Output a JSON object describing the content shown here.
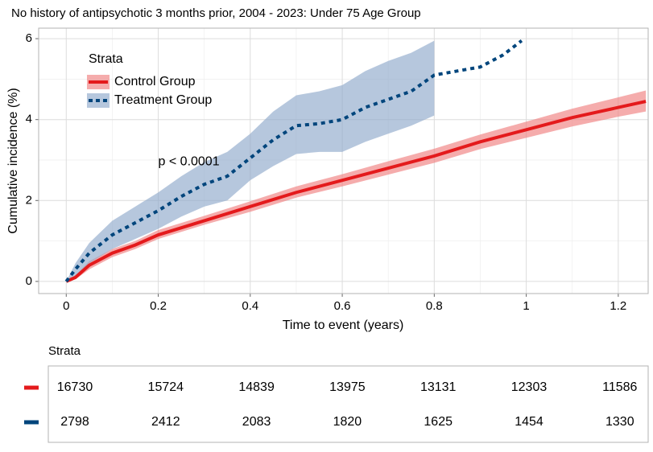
{
  "chart_data": {
    "type": "line",
    "title": "No history of antipsychotic 3 months prior, 2004 - 2023: Under 75 Age Group",
    "x_label": "Time to event (years)",
    "y_label": "Cumulative incidence (%)",
    "annotation": "p < 0.0001",
    "legend_title": "Strata",
    "xlim": [
      -0.06,
      1.265
    ],
    "ylim": [
      -0.3,
      6.26
    ],
    "xticks": [
      0,
      0.2,
      0.4,
      0.6,
      0.8,
      1,
      1.2
    ],
    "yticks": [
      0,
      2,
      4,
      6
    ],
    "x_minor_grid": [
      0.1,
      0.3,
      0.5,
      0.7,
      0.9,
      1.1
    ],
    "y_minor_grid": [
      1,
      3,
      5
    ],
    "grid": true,
    "series": [
      {
        "name": "Control Group",
        "color": "#e41a1c",
        "band_color": "#f08080",
        "dash": false,
        "x": [
          0,
          0.02,
          0.05,
          0.1,
          0.15,
          0.2,
          0.3,
          0.4,
          0.5,
          0.6,
          0.7,
          0.8,
          0.9,
          1.0,
          1.1,
          1.2,
          1.26
        ],
        "values": [
          0,
          0.1,
          0.4,
          0.7,
          0.9,
          1.15,
          1.5,
          1.85,
          2.2,
          2.5,
          2.8,
          3.1,
          3.45,
          3.75,
          4.05,
          4.3,
          4.45
        ],
        "lower": [
          0,
          0.05,
          0.3,
          0.6,
          0.8,
          1.05,
          1.4,
          1.72,
          2.07,
          2.35,
          2.64,
          2.93,
          3.27,
          3.55,
          3.83,
          4.07,
          4.2
        ],
        "upper": [
          0,
          0.15,
          0.5,
          0.8,
          1.0,
          1.27,
          1.62,
          1.98,
          2.35,
          2.65,
          2.97,
          3.28,
          3.63,
          3.95,
          4.27,
          4.55,
          4.72
        ]
      },
      {
        "name": "Treatment Group",
        "color": "#00457c",
        "band_color": "#8fa9cb",
        "dash": true,
        "x": [
          0,
          0.02,
          0.05,
          0.1,
          0.15,
          0.2,
          0.25,
          0.3,
          0.35,
          0.4,
          0.45,
          0.5,
          0.55,
          0.6,
          0.65,
          0.7,
          0.75,
          0.8,
          0.85,
          0.9,
          0.95,
          0.99
        ],
        "values": [
          0,
          0.3,
          0.7,
          1.15,
          1.45,
          1.75,
          2.1,
          2.4,
          2.6,
          3.05,
          3.5,
          3.85,
          3.9,
          4.0,
          4.3,
          4.5,
          4.7,
          5.1,
          5.2,
          5.3,
          5.6,
          5.95
        ],
        "lower": [
          0,
          0.15,
          0.45,
          0.8,
          1.05,
          1.3,
          1.6,
          1.85,
          2.0,
          2.5,
          2.85,
          3.15,
          3.2,
          3.2,
          3.45,
          3.65,
          3.85,
          4.1,
          null,
          null,
          null,
          null
        ],
        "upper": [
          0,
          0.45,
          0.95,
          1.5,
          1.85,
          2.2,
          2.6,
          2.95,
          3.2,
          3.65,
          4.2,
          4.6,
          4.7,
          4.85,
          5.2,
          5.45,
          5.65,
          5.95,
          null,
          null,
          null,
          null
        ]
      }
    ],
    "risk_table": {
      "title": "Strata",
      "rows": [
        {
          "color": "#e41a1c",
          "values": [
            16730,
            15724,
            14839,
            13975,
            13131,
            12303,
            11586
          ]
        },
        {
          "color": "#00457c",
          "values": [
            2798,
            2412,
            2083,
            1820,
            1625,
            1454,
            1330
          ]
        }
      ]
    }
  }
}
